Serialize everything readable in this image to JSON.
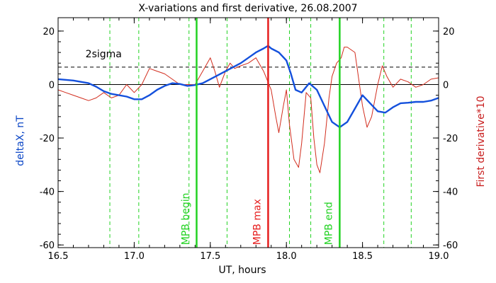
{
  "chart_data": {
    "type": "line",
    "title": "X-variations and first derivative, 26.08.2007",
    "xlabel": "UT, hours",
    "ylabel_left": "deltaX, nT",
    "ylabel_right": "First derivative*10",
    "xlim": [
      16.5,
      19.0
    ],
    "ylim": [
      -61,
      25
    ],
    "x_ticks": [
      {
        "value": 16.5,
        "label": "16.5"
      },
      {
        "value": 17.0,
        "label": "17.0"
      },
      {
        "value": 17.5,
        "label": "17.5"
      },
      {
        "value": 18.0,
        "label": "18.0"
      },
      {
        "value": 18.5,
        "label": "18.5"
      },
      {
        "value": 19.0,
        "label": "19.0"
      }
    ],
    "y_ticks": [
      {
        "value": 20,
        "label": "20"
      },
      {
        "value": 0,
        "label": "0"
      },
      {
        "value": -20,
        "label": "-20"
      },
      {
        "value": -40,
        "label": "-40"
      },
      {
        "value": -60,
        "label": "-60"
      }
    ],
    "threshold": {
      "label": "2sigma",
      "value": 6.5,
      "label_x": 16.68,
      "label_y": 10.2
    },
    "colors": {
      "deltaX": "#1450dc",
      "derivative": "#d22d1e",
      "green": "#22d222",
      "red_marker": "#e61e1e",
      "axis": "#000000"
    },
    "dashed_verticals": [
      16.84,
      17.03,
      17.36,
      17.61,
      18.02,
      18.16,
      18.64,
      18.82
    ],
    "markers": [
      {
        "label": "MPB begin",
        "x": 17.41,
        "color": "#22d222",
        "label_x": 17.36,
        "label_y": -60
      },
      {
        "label": "MPB max",
        "x": 17.88,
        "color": "#e61e1e",
        "label_x": 17.83,
        "label_y": -60
      },
      {
        "label": "MPB end",
        "x": 18.35,
        "color": "#22d222",
        "label_x": 18.3,
        "label_y": -60
      }
    ],
    "series": [
      {
        "name": "deltaX",
        "x": [
          16.5,
          16.6,
          16.7,
          16.75,
          16.8,
          16.85,
          16.9,
          16.95,
          17.0,
          17.05,
          17.1,
          17.15,
          17.2,
          17.25,
          17.3,
          17.35,
          17.4,
          17.45,
          17.5,
          17.55,
          17.6,
          17.65,
          17.7,
          17.75,
          17.8,
          17.85,
          17.88,
          17.9,
          17.95,
          18.0,
          18.03,
          18.06,
          18.1,
          18.15,
          18.2,
          18.25,
          18.3,
          18.35,
          18.4,
          18.45,
          18.5,
          18.55,
          18.6,
          18.65,
          18.7,
          18.75,
          18.8,
          18.85,
          18.9,
          18.95,
          19.0
        ],
        "values": [
          2.0,
          1.5,
          0.5,
          -0.8,
          -2.5,
          -3.5,
          -4.0,
          -4.5,
          -5.5,
          -5.5,
          -4.0,
          -2.0,
          -0.5,
          0.5,
          0.2,
          -0.5,
          -0.2,
          0.5,
          2.0,
          3.5,
          5.0,
          6.5,
          8.0,
          10.0,
          12.0,
          13.5,
          14.5,
          13.5,
          12.0,
          9.0,
          4.0,
          -2.0,
          -3.0,
          0.5,
          -2.0,
          -8.0,
          -14.0,
          -16.0,
          -14.0,
          -9.0,
          -4.0,
          -7.0,
          -10.0,
          -10.5,
          -8.5,
          -7.0,
          -6.8,
          -6.5,
          -6.5,
          -6.0,
          -5.0
        ]
      },
      {
        "name": "First derivative*10",
        "x": [
          16.5,
          16.55,
          16.6,
          16.65,
          16.7,
          16.75,
          16.8,
          16.85,
          16.9,
          16.95,
          17.0,
          17.05,
          17.1,
          17.15,
          17.2,
          17.25,
          17.3,
          17.35,
          17.4,
          17.45,
          17.5,
          17.53,
          17.56,
          17.6,
          17.63,
          17.66,
          17.7,
          17.75,
          17.8,
          17.85,
          17.9,
          17.93,
          17.95,
          17.98,
          18.0,
          18.02,
          18.05,
          18.08,
          18.1,
          18.13,
          18.16,
          18.18,
          18.2,
          18.22,
          18.25,
          18.28,
          18.3,
          18.33,
          18.36,
          18.38,
          18.4,
          18.45,
          18.5,
          18.53,
          18.56,
          18.6,
          18.63,
          18.66,
          18.7,
          18.75,
          18.8,
          18.85,
          18.9,
          18.95,
          19.0
        ],
        "values": [
          -2.0,
          -3.0,
          -4.0,
          -5.0,
          -6.0,
          -5.0,
          -3.0,
          -5.0,
          -4.0,
          0.0,
          -3.0,
          0.0,
          6.0,
          5.0,
          4.0,
          2.0,
          0.0,
          0.0,
          0.0,
          5.0,
          10.0,
          5.0,
          -1.0,
          5.0,
          8.0,
          6.0,
          7.0,
          8.0,
          10.0,
          5.0,
          -2.0,
          -12.0,
          -18.0,
          -8.0,
          -2.0,
          -15.0,
          -28.0,
          -31.0,
          -22.0,
          -3.0,
          -5.0,
          -20.0,
          -30.0,
          -33.0,
          -22.0,
          -5.0,
          3.0,
          8.0,
          10.0,
          14.0,
          14.0,
          12.0,
          -8.0,
          -16.0,
          -12.0,
          0.0,
          7.0,
          3.0,
          -1.0,
          2.0,
          1.0,
          -1.0,
          0.0,
          2.0,
          2.5
        ]
      }
    ]
  }
}
